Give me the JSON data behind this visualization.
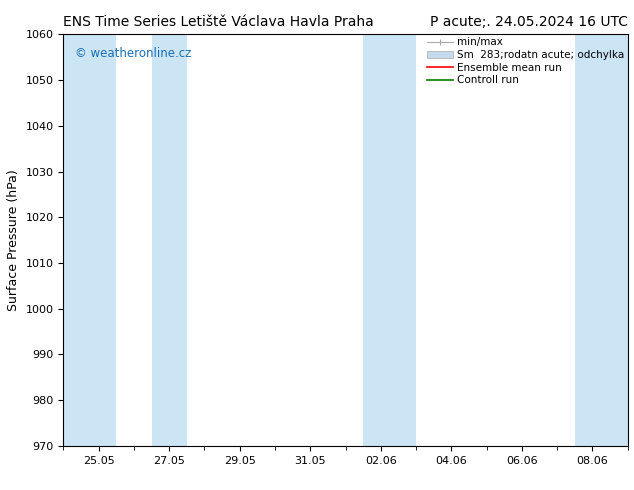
{
  "title_left": "ENS Time Series Letiště Václava Havla Praha",
  "title_right": "P acute;. 24.05.2024 16 UTC",
  "ylabel": "Surface Pressure (hPa)",
  "ylim": [
    970,
    1060
  ],
  "yticks": [
    970,
    980,
    990,
    1000,
    1010,
    1020,
    1030,
    1040,
    1050,
    1060
  ],
  "x_tick_labels": [
    "25.05",
    "27.05",
    "29.05",
    "31.05",
    "02.06",
    "04.06",
    "06.06",
    "08.06"
  ],
  "x_tick_positions": [
    1,
    3,
    5,
    7,
    9,
    11,
    13,
    15
  ],
  "x_min": 0,
  "x_max": 16,
  "watermark": "© weatheronline.cz",
  "watermark_color": "#1a6eb5",
  "bg_color": "#ffffff",
  "plot_bg_color": "#ffffff",
  "shaded_bands": [
    {
      "x_start": 0.0,
      "x_end": 1.5,
      "color": "#cce5f5"
    },
    {
      "x_start": 2.5,
      "x_end": 3.5,
      "color": "#cce5f5"
    },
    {
      "x_start": 8.5,
      "x_end": 10.0,
      "color": "#cce5f5"
    },
    {
      "x_start": 14.5,
      "x_end": 16.0,
      "color": "#cce5f5"
    }
  ],
  "legend_minmax_label": "min/max",
  "legend_band_label": "Sm  283;rodatn acute; odchylka",
  "legend_ens_label": "Ensemble mean run",
  "legend_ctrl_label": "Controll run",
  "legend_minmax_color": "#aaaaaa",
  "legend_band_color": "#c5daea",
  "legend_ens_color": "#ff0000",
  "legend_ctrl_color": "#008000",
  "title_fontsize": 10,
  "axis_label_fontsize": 9,
  "tick_fontsize": 8,
  "legend_fontsize": 7.5
}
